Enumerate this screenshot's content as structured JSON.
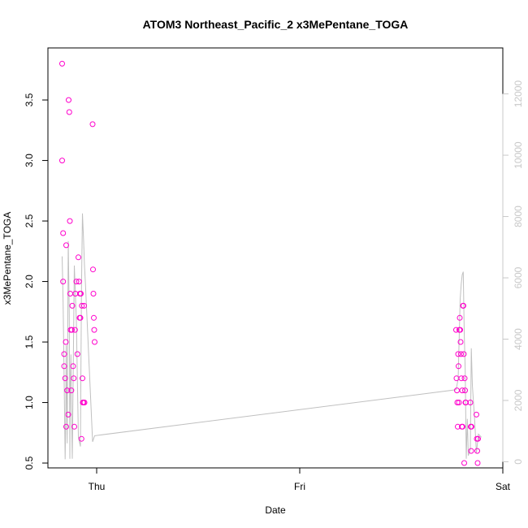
{
  "chart_data": {
    "type": "scatter",
    "title": "ATOM3 Northeast_Pacific_2 x3MePentane_TOGA",
    "xlabel": "Date",
    "ylabel": "x3MePentane_TOGA",
    "x_ticks": [
      {
        "label": "Thu",
        "value": 1.0
      },
      {
        "label": "Fri",
        "value": 2.0
      },
      {
        "label": "Sat",
        "value": 3.0
      }
    ],
    "y_ticks": [
      "0.5",
      "1.0",
      "1.5",
      "2.0",
      "2.5",
      "3.0",
      "3.5"
    ],
    "y_right_ticks": [
      "0",
      "2000",
      "4000",
      "6000",
      "8000",
      "10000",
      "12000"
    ],
    "xlim": [
      0.76,
      3.0
    ],
    "ylim": [
      0.46,
      3.93
    ],
    "y2lim": [
      -200,
      13500
    ],
    "colors": {
      "points": "#ff00cc",
      "line": "#c0c0c0",
      "right_axis": "#c8c8c8"
    },
    "series": [
      {
        "type": "points",
        "x": [
          0.83,
          0.83,
          0.835,
          0.835,
          0.84,
          0.84,
          0.845,
          0.848,
          0.85,
          0.85,
          0.855,
          0.86,
          0.862,
          0.865,
          0.868,
          0.87,
          0.872,
          0.875,
          0.878,
          0.88,
          0.884,
          0.887,
          0.89,
          0.893,
          0.895,
          0.9,
          0.905,
          0.91,
          0.913,
          0.916,
          0.918,
          0.92,
          0.922,
          0.925,
          0.927,
          0.93,
          0.932,
          0.935,
          0.938,
          0.94,
          0.98,
          0.982,
          0.984,
          0.986,
          0.988,
          0.99,
          2.77,
          2.772,
          2.774,
          2.776,
          2.778,
          2.78,
          2.782,
          2.784,
          2.786,
          2.788,
          2.79,
          2.792,
          2.794,
          2.796,
          2.798,
          2.8,
          2.802,
          2.804,
          2.806,
          2.808,
          2.81,
          2.812,
          2.814,
          2.816,
          2.818,
          2.84,
          2.842,
          2.844,
          2.846,
          2.87,
          2.872,
          2.874,
          2.876,
          2.878
        ],
        "y": [
          3.8,
          3.0,
          2.4,
          2.0,
          1.4,
          1.3,
          1.2,
          1.5,
          2.3,
          0.8,
          1.1,
          0.9,
          3.5,
          3.4,
          2.5,
          1.9,
          1.6,
          1.1,
          1.6,
          1.8,
          1.3,
          1.2,
          0.8,
          1.6,
          1.9,
          2.0,
          1.4,
          2.2,
          2.0,
          1.7,
          1.9,
          1.7,
          1.9,
          0.7,
          1.8,
          1.2,
          1.0,
          1.0,
          1.8,
          1.0,
          3.3,
          2.1,
          1.9,
          1.7,
          1.6,
          1.5,
          1.6,
          1.2,
          1.1,
          1.0,
          0.8,
          1.4,
          1.3,
          1.0,
          1.6,
          1.7,
          1.6,
          1.5,
          1.4,
          1.2,
          0.8,
          1.1,
          0.8,
          1.8,
          1.8,
          1.4,
          0.5,
          1.2,
          1.1,
          1.0,
          1.0,
          1.0,
          0.8,
          0.6,
          0.8,
          0.9,
          0.7,
          0.6,
          0.5,
          0.7
        ]
      },
      {
        "type": "line",
        "axis": "right",
        "x": [
          0.83,
          0.835,
          0.84,
          0.845,
          0.848,
          0.85,
          0.855,
          0.86,
          0.865,
          0.868,
          0.87,
          0.873,
          0.876,
          0.88,
          0.89,
          0.9,
          0.91,
          0.92,
          0.925,
          0.93,
          0.935,
          0.94,
          0.945,
          0.98,
          0.99,
          2.77,
          2.78,
          2.79,
          2.795,
          2.8,
          2.805,
          2.81,
          2.815,
          2.82,
          2.825,
          2.83,
          2.84,
          2.845,
          2.85,
          2.86,
          2.87,
          2.88,
          2.895
        ],
        "y": [
          6700,
          5200,
          2600,
          80,
          1500,
          3800,
          600,
          7200,
          4800,
          100,
          2500,
          3500,
          1800,
          100,
          6400,
          4600,
          800,
          500,
          5600,
          8100,
          7300,
          6400,
          5800,
          650,
          850,
          2350,
          2700,
          5300,
          5800,
          6100,
          6200,
          4200,
          3000,
          100,
          1400,
          200,
          400,
          3700,
          2500,
          1500,
          300,
          900,
          800
        ]
      }
    ]
  }
}
